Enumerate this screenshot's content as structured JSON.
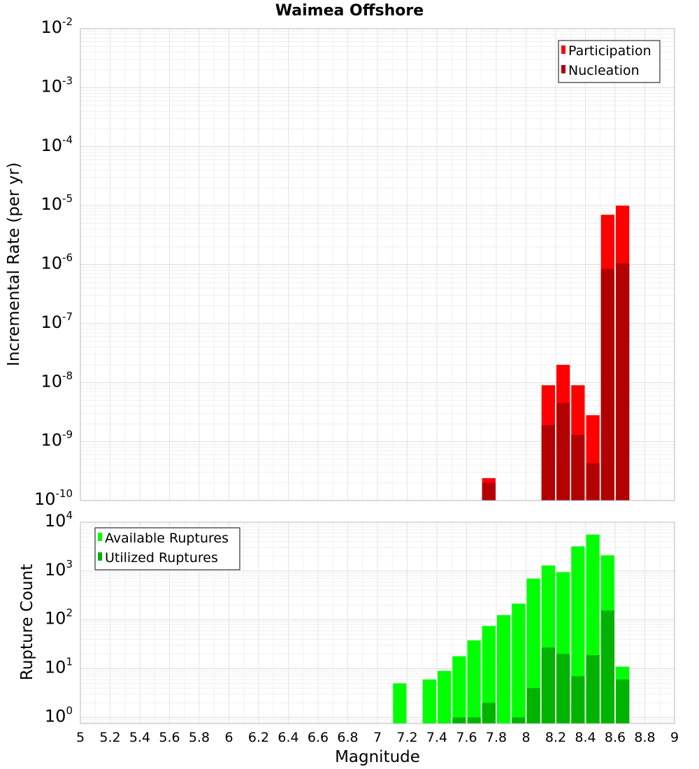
{
  "chart_data": {
    "type": "bar",
    "title": "Waimea Offshore",
    "xlabel": "Magnitude",
    "xlim": [
      5,
      9
    ],
    "x_ticks": [
      "5",
      "5.2",
      "5.4",
      "5.6",
      "5.8",
      "6",
      "6.2",
      "6.4",
      "6.6",
      "6.8",
      "7",
      "7.2",
      "7.4",
      "7.6",
      "7.8",
      "8",
      "8.2",
      "8.4",
      "8.6",
      "8.8",
      "9"
    ],
    "bin_width": 0.1,
    "grid": true,
    "panels": [
      {
        "name": "rate",
        "ylabel": "Incremental Rate (per yr)",
        "yscale": "log",
        "ylim": [
          1e-10,
          0.01
        ],
        "y_tick_exponents": [
          "-10",
          "-9",
          "-8",
          "-7",
          "-6",
          "-5",
          "-4",
          "-3",
          "-2"
        ],
        "legend_position": "top-right",
        "series": [
          {
            "name": "Participation",
            "color": "#ff0000",
            "x": [
              7.75,
              8.15,
              8.25,
              8.35,
              8.45,
              8.55,
              8.65
            ],
            "values": [
              2.4e-10,
              9e-09,
              2e-08,
              9e-09,
              2.8e-09,
              7e-06,
              1e-05
            ]
          },
          {
            "name": "Nucleation",
            "color": "#b30000",
            "x": [
              7.75,
              8.15,
              8.25,
              8.35,
              8.45,
              8.55,
              8.65
            ],
            "values": [
              2e-10,
              1.9e-09,
              4.5e-09,
              1.3e-09,
              4.3e-10,
              8.5e-07,
              1.05e-06
            ]
          }
        ]
      },
      {
        "name": "count",
        "ylabel": "Rupture Count",
        "yscale": "log",
        "ylim": [
          0.75,
          10000
        ],
        "y_tick_exponents": [
          "0",
          "1",
          "2",
          "3",
          "4"
        ],
        "legend_position": "top-left",
        "series": [
          {
            "name": "Available Ruptures",
            "color": "#00ff00",
            "x": [
              7.15,
              7.35,
              7.45,
              7.55,
              7.65,
              7.75,
              7.85,
              7.95,
              8.05,
              8.15,
              8.25,
              8.35,
              8.45,
              8.55,
              8.65
            ],
            "values": [
              5,
              6,
              9,
              18,
              38,
              75,
              125,
              215,
              700,
              1300,
              950,
              3200,
              5600,
              2100,
              11
            ]
          },
          {
            "name": "Utilized Ruptures",
            "color": "#00b300",
            "x": [
              7.55,
              7.65,
              7.75,
              7.95,
              8.05,
              8.15,
              8.25,
              8.35,
              8.45,
              8.55,
              8.65
            ],
            "values": [
              1,
              1,
              2,
              1,
              4,
              27,
              20,
              7,
              19,
              155,
              6
            ]
          }
        ]
      }
    ]
  }
}
